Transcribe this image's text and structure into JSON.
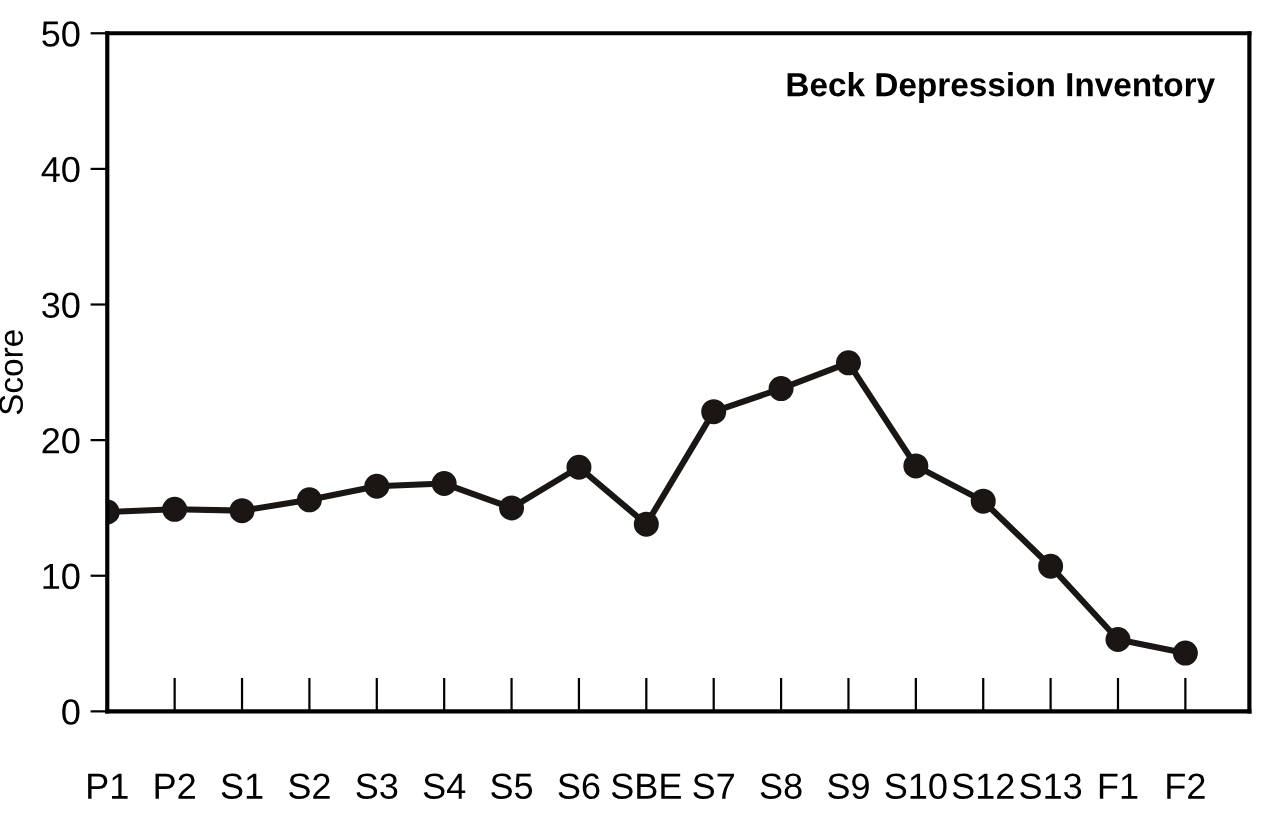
{
  "chart_data": {
    "type": "line",
    "title": "Beck Depression Inventory",
    "ylabel": "Score",
    "categories": [
      "P1",
      "P2",
      "S1",
      "S2",
      "S3",
      "S4",
      "S5",
      "S6",
      "SBE",
      "S7",
      "S8",
      "S9",
      "S10",
      "S12",
      "S13",
      "F1",
      "F2"
    ],
    "series": [
      {
        "color": "#1a1614",
        "values": [
          14.7,
          14.9,
          14.8,
          15.6,
          16.6,
          16.8,
          15.0,
          18.0,
          13.8,
          22.1,
          23.8,
          25.7,
          18.1,
          15.5,
          10.7,
          5.3,
          4.3
        ]
      }
    ],
    "ylim": [
      0,
      50
    ],
    "yticks": [
      0,
      10,
      20,
      30,
      40,
      50
    ],
    "grid": false,
    "legend": false,
    "marker": "circle",
    "line_style": "solid"
  }
}
